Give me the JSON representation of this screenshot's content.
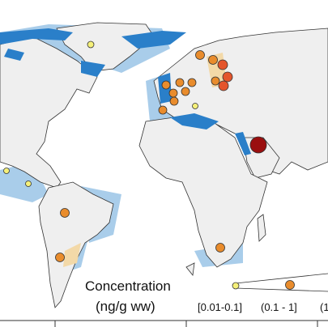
{
  "legend": {
    "title": "Concentration",
    "unit": "(ng/g ww)",
    "classes": [
      "[0.01-0.1]",
      "(0.1 - 1]",
      "(1"
    ]
  }
}
